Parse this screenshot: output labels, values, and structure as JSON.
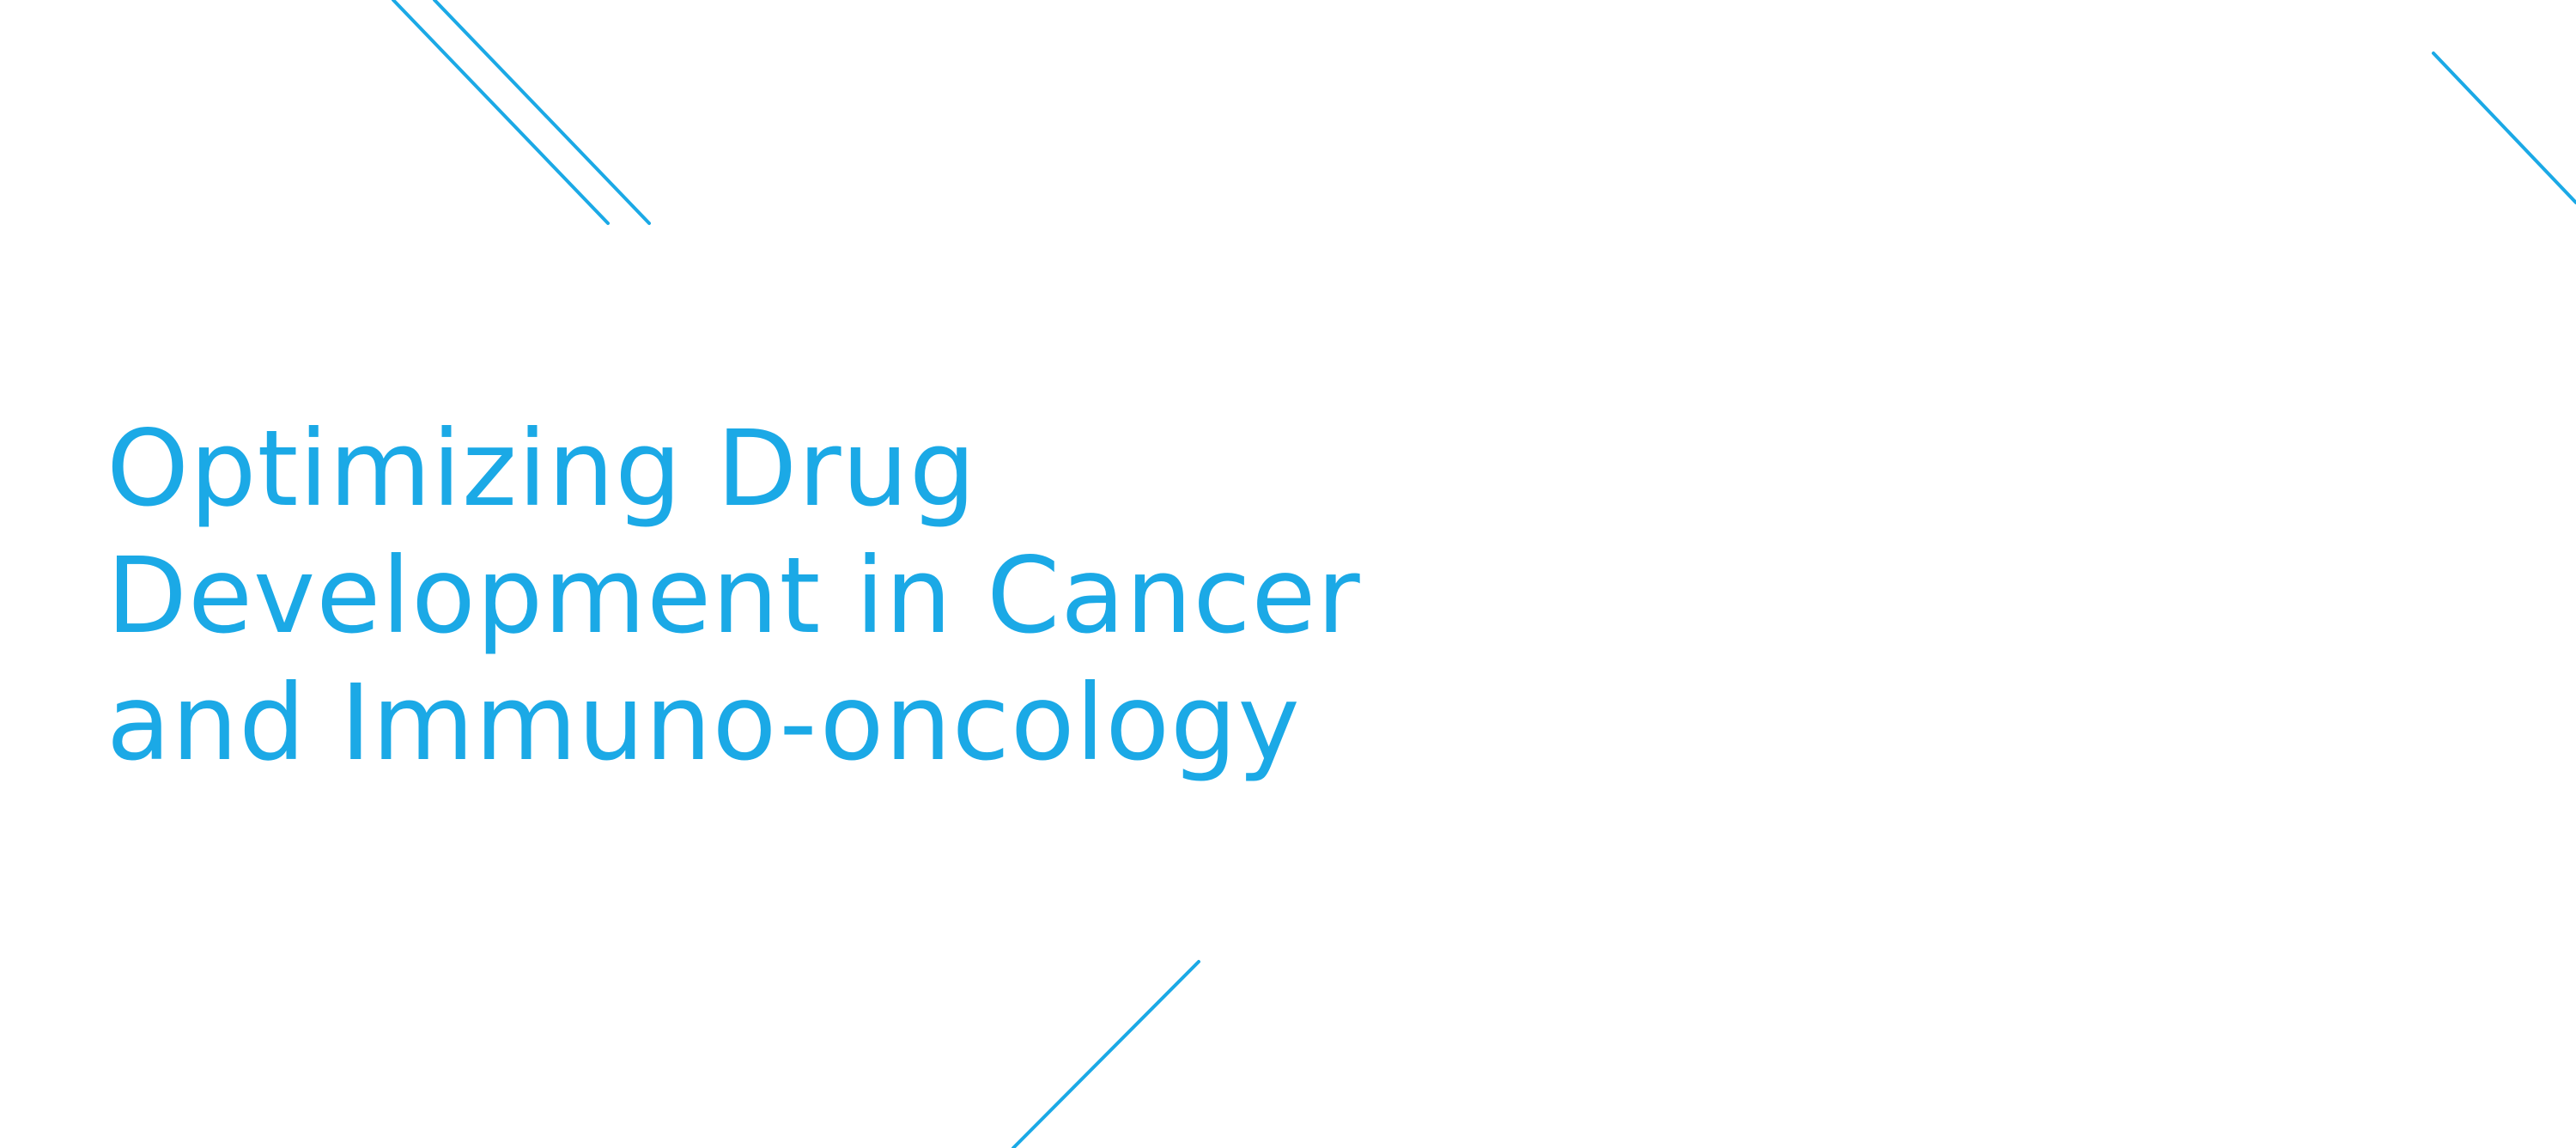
{
  "slide": {
    "title_lines": [
      "Optimizing Drug",
      "Development in Cancer",
      "and Immuno-oncology"
    ]
  },
  "colors": {
    "accent": "#1BA9E6",
    "background": "#FFFFFF"
  }
}
